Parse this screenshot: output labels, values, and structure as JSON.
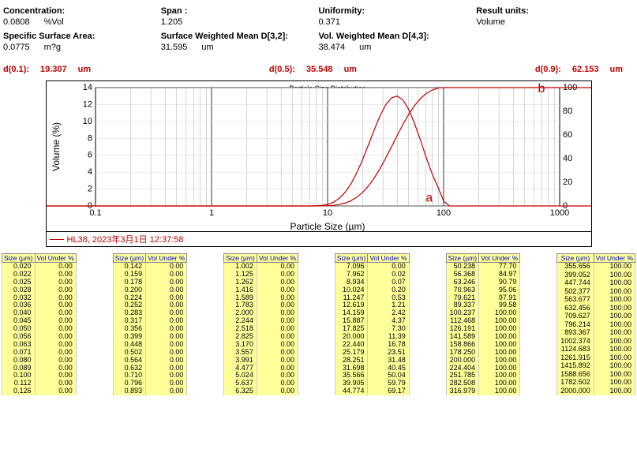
{
  "stats": {
    "row1": [
      {
        "label": "Concentration:",
        "value": "0.0808",
        "unit": "%Vol"
      },
      {
        "label": "Span :",
        "value": "1.205",
        "unit": ""
      },
      {
        "label": "Uniformity:",
        "value": "0.371",
        "unit": ""
      },
      {
        "label": "Result units:",
        "value": "Volume",
        "unit": ""
      }
    ],
    "row2": [
      {
        "label": "Specific Surface Area:",
        "value": "0.0775",
        "unit": "m?g"
      },
      {
        "label": "Surface Weighted Mean D[3,2]:",
        "value": "31.595",
        "unit": "um"
      },
      {
        "label": "Vol. Weighted Mean D[4,3]:",
        "value": "38.474",
        "unit": "um"
      },
      {
        "label": "",
        "value": "",
        "unit": ""
      }
    ]
  },
  "percentiles": [
    {
      "label": "d(0.1):",
      "value": "19.307",
      "unit": "um"
    },
    {
      "label": "d(0.5):",
      "value": "35.548",
      "unit": "um"
    },
    {
      "label": "d(0.9):",
      "value": "62.153",
      "unit": "um"
    }
  ],
  "chart": {
    "title": "Particle Size Distribution",
    "x_label": "Particle Size (µm)",
    "y_left_label": "Volume (%)",
    "x_ticks": [
      "0.1",
      "1",
      "10",
      "100",
      "1000"
    ],
    "y_left_ticks": [
      0,
      2,
      4,
      6,
      8,
      10,
      12,
      14
    ],
    "y_right_ticks": [
      0,
      20,
      40,
      60,
      80,
      100
    ],
    "annot_a": "a",
    "annot_b": "b",
    "legend": "HL38,  2023年3月1日  12:37:58",
    "series_color": "#c00000",
    "grid_color": "#000",
    "plot_bg": "#ffffff"
  },
  "table_headers": [
    "Size (µm)",
    "Vol Under %"
  ],
  "tables": [
    [
      [
        "0.020",
        "0.00"
      ],
      [
        "0.022",
        "0.00"
      ],
      [
        "0.025",
        "0.00"
      ],
      [
        "0.028",
        "0.00"
      ],
      [
        "0.032",
        "0.00"
      ],
      [
        "0.036",
        "0.00"
      ],
      [
        "0.040",
        "0.00"
      ],
      [
        "0.045",
        "0.00"
      ],
      [
        "0.050",
        "0.00"
      ],
      [
        "0.056",
        "0.00"
      ],
      [
        "0.063",
        "0.00"
      ],
      [
        "0.071",
        "0.00"
      ],
      [
        "0.080",
        "0.00"
      ],
      [
        "0.089",
        "0.00"
      ],
      [
        "0.100",
        "0.00"
      ],
      [
        "0.112",
        "0.00"
      ],
      [
        "0.126",
        "0.00"
      ]
    ],
    [
      [
        "0.142",
        "0.00"
      ],
      [
        "0.159",
        "0.00"
      ],
      [
        "0.178",
        "0.00"
      ],
      [
        "0.200",
        "0.00"
      ],
      [
        "0.224",
        "0.00"
      ],
      [
        "0.252",
        "0.00"
      ],
      [
        "0.283",
        "0.00"
      ],
      [
        "0.317",
        "0.00"
      ],
      [
        "0.356",
        "0.00"
      ],
      [
        "0.399",
        "0.00"
      ],
      [
        "0.448",
        "0.00"
      ],
      [
        "0.502",
        "0.00"
      ],
      [
        "0.564",
        "0.00"
      ],
      [
        "0.632",
        "0.00"
      ],
      [
        "0.710",
        "0.00"
      ],
      [
        "0.796",
        "0.00"
      ],
      [
        "0.893",
        "0.00"
      ]
    ],
    [
      [
        "1.002",
        "0.00"
      ],
      [
        "1.125",
        "0.00"
      ],
      [
        "1.262",
        "0.00"
      ],
      [
        "1.416",
        "0.00"
      ],
      [
        "1.589",
        "0.00"
      ],
      [
        "1.783",
        "0.00"
      ],
      [
        "2.000",
        "0.00"
      ],
      [
        "2.244",
        "0.00"
      ],
      [
        "2.518",
        "0.00"
      ],
      [
        "2.825",
        "0.00"
      ],
      [
        "3.170",
        "0.00"
      ],
      [
        "3.557",
        "0.00"
      ],
      [
        "3.991",
        "0.00"
      ],
      [
        "4.477",
        "0.00"
      ],
      [
        "5.024",
        "0.00"
      ],
      [
        "5.637",
        "0.00"
      ],
      [
        "6.325",
        "0.00"
      ]
    ],
    [
      [
        "7.096",
        "0.00"
      ],
      [
        "7.962",
        "0.02"
      ],
      [
        "8.934",
        "0.07"
      ],
      [
        "10.024",
        "0.20"
      ],
      [
        "11.247",
        "0.53"
      ],
      [
        "12.619",
        "1.21"
      ],
      [
        "14.159",
        "2.42"
      ],
      [
        "15.887",
        "4.37"
      ],
      [
        "17.825",
        "7.30"
      ],
      [
        "20.000",
        "11.39"
      ],
      [
        "22.440",
        "16.78"
      ],
      [
        "25.179",
        "23.51"
      ],
      [
        "28.251",
        "31.48"
      ],
      [
        "31.698",
        "40.45"
      ],
      [
        "35.566",
        "50.04"
      ],
      [
        "39.905",
        "59.79"
      ],
      [
        "44.774",
        "69.17"
      ]
    ],
    [
      [
        "50.238",
        "77.70"
      ],
      [
        "56.368",
        "84.97"
      ],
      [
        "63.246",
        "90.79"
      ],
      [
        "70.963",
        "95.06"
      ],
      [
        "79.621",
        "97.91"
      ],
      [
        "89.337",
        "99.58"
      ],
      [
        "100.237",
        "100.00"
      ],
      [
        "112.468",
        "100.00"
      ],
      [
        "126.191",
        "100.00"
      ],
      [
        "141.589",
        "100.00"
      ],
      [
        "158.866",
        "100.00"
      ],
      [
        "178.250",
        "100.00"
      ],
      [
        "200.000",
        "100.00"
      ],
      [
        "224.404",
        "100.00"
      ],
      [
        "251.785",
        "100.00"
      ],
      [
        "282.508",
        "100.00"
      ],
      [
        "316.979",
        "100.00"
      ]
    ],
    [
      [
        "355.656",
        "100.00"
      ],
      [
        "399.052",
        "100.00"
      ],
      [
        "447.744",
        "100.00"
      ],
      [
        "502.377",
        "100.00"
      ],
      [
        "563.677",
        "100.00"
      ],
      [
        "632.456",
        "100.00"
      ],
      [
        "709.627",
        "100.00"
      ],
      [
        "796.214",
        "100.00"
      ],
      [
        "893.367",
        "100.00"
      ],
      [
        "1002.374",
        "100.00"
      ],
      [
        "1124.683",
        "100.00"
      ],
      [
        "1261.915",
        "100.00"
      ],
      [
        "1415.892",
        "100.00"
      ],
      [
        "1588.656",
        "100.00"
      ],
      [
        "1782.502",
        "100.00"
      ],
      [
        "2000.000",
        "100.00"
      ]
    ]
  ]
}
